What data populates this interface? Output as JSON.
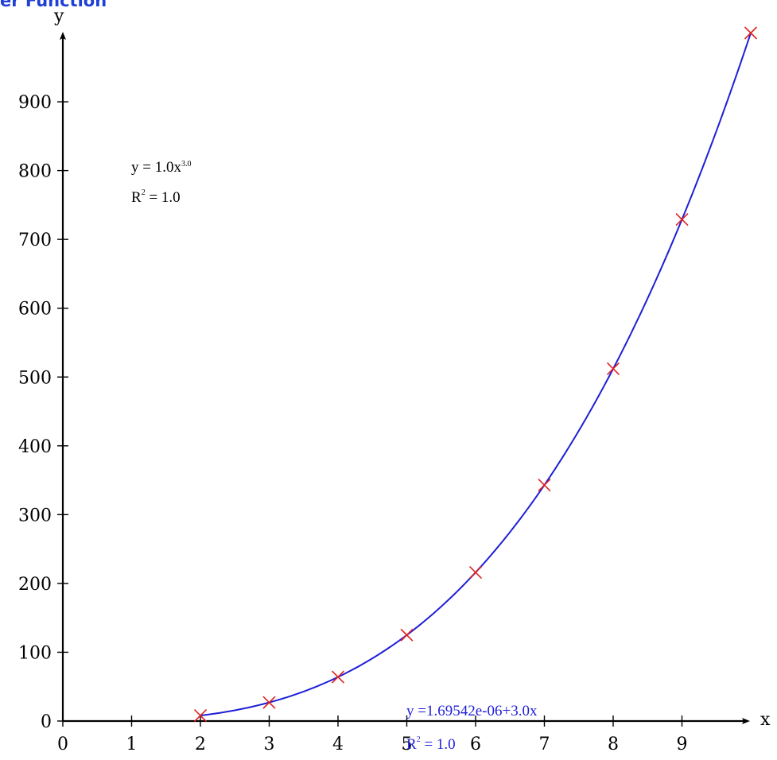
{
  "chart_data": {
    "type": "scatter",
    "title": "er Function",
    "xlabel": "x",
    "ylabel": "y",
    "xlim": [
      0,
      10
    ],
    "ylim": [
      0,
      1000
    ],
    "x_ticks": [
      0,
      1,
      2,
      3,
      4,
      5,
      6,
      7,
      8,
      9
    ],
    "y_ticks": [
      0,
      100,
      200,
      300,
      400,
      500,
      600,
      700,
      800,
      900
    ],
    "series": [
      {
        "marker": "x",
        "color": "#e02020",
        "x": [
          2,
          3,
          4,
          5,
          6,
          7,
          8,
          9,
          10
        ],
        "y": [
          8,
          27,
          64,
          125,
          216,
          343,
          512,
          729,
          1000
        ]
      }
    ],
    "fit_curve": {
      "color": "#1f1fd6",
      "function": "power",
      "coefficient": 1.0,
      "exponent": 3.0
    },
    "annotations": {
      "power_fit": {
        "eq_base": "y = 1.0x",
        "eq_exp": "3.0",
        "r2_prefix": "R",
        "r2_sup": "2",
        "r2_value": " = 1.0"
      },
      "linear_fit": {
        "eq": "y =1.69542e-06+3.0x",
        "r2_prefix": "R",
        "r2_sup": "2",
        "r2_value": " = 1.0"
      }
    }
  }
}
